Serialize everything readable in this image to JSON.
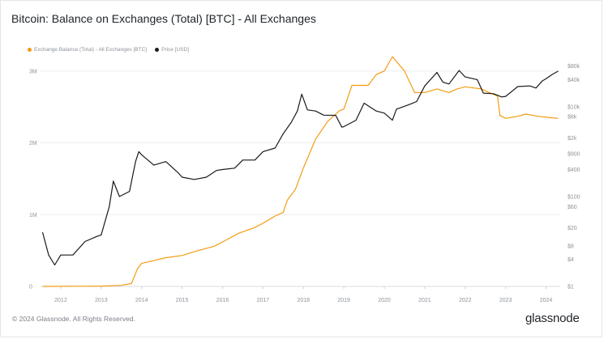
{
  "title": "Bitcoin: Balance on Exchanges (Total) [BTC] - All Exchanges",
  "footer": {
    "copyright": "© 2024 Glassnode. All Rights Reserved.",
    "logo": "glassnode"
  },
  "colors": {
    "balance": "#f39c12",
    "price": "#1a1a1a",
    "grid": "#eceef1",
    "axis_text": "#8d939a"
  },
  "chart_data": {
    "type": "line",
    "title": "Bitcoin: Balance on Exchanges (Total) [BTC] - All Exchanges",
    "legend_position": "top-left",
    "grid": true,
    "x_ticks": [
      "2012",
      "2013",
      "2014",
      "2015",
      "2016",
      "2017",
      "2018",
      "2019",
      "2020",
      "2021",
      "2022",
      "2023",
      "2024"
    ],
    "x_range": [
      2011.5,
      2024.35
    ],
    "y_left": {
      "label": "",
      "scale": "linear",
      "range": [
        0,
        3200000
      ],
      "ticks": [
        {
          "value": 0,
          "label": "0"
        },
        {
          "value": 1000000,
          "label": "1M"
        },
        {
          "value": 2000000,
          "label": "2M"
        },
        {
          "value": 3000000,
          "label": "3M"
        }
      ]
    },
    "y_right": {
      "label": "",
      "scale": "log",
      "range": [
        1,
        130000
      ],
      "ticks": [
        {
          "value": 1,
          "label": "$1"
        },
        {
          "value": 4,
          "label": "$4"
        },
        {
          "value": 8,
          "label": "$8"
        },
        {
          "value": 20,
          "label": "$20"
        },
        {
          "value": 60,
          "label": "$60"
        },
        {
          "value": 100,
          "label": "$100"
        },
        {
          "value": 400,
          "label": "$400"
        },
        {
          "value": 900,
          "label": "$900"
        },
        {
          "value": 2000,
          "label": "$2k"
        },
        {
          "value": 6000,
          "label": "$6k"
        },
        {
          "value": 10000,
          "label": "$10k"
        },
        {
          "value": 40000,
          "label": "$40k"
        },
        {
          "value": 80000,
          "label": "$80k"
        }
      ]
    },
    "series": [
      {
        "name": "Exchange Balance (Total) - All Exchanges [BTC]",
        "axis": "left",
        "points": [
          [
            2011.55,
            0
          ],
          [
            2012.0,
            1000
          ],
          [
            2012.5,
            2000
          ],
          [
            2013.0,
            5000
          ],
          [
            2013.5,
            15000
          ],
          [
            2013.75,
            40000
          ],
          [
            2013.9,
            250000
          ],
          [
            2014.0,
            320000
          ],
          [
            2014.3,
            360000
          ],
          [
            2014.6,
            400000
          ],
          [
            2015.0,
            430000
          ],
          [
            2015.4,
            500000
          ],
          [
            2015.8,
            560000
          ],
          [
            2016.0,
            620000
          ],
          [
            2016.4,
            740000
          ],
          [
            2016.8,
            820000
          ],
          [
            2017.0,
            880000
          ],
          [
            2017.3,
            980000
          ],
          [
            2017.5,
            1030000
          ],
          [
            2017.6,
            1200000
          ],
          [
            2017.8,
            1350000
          ],
          [
            2018.0,
            1650000
          ],
          [
            2018.3,
            2050000
          ],
          [
            2018.6,
            2300000
          ],
          [
            2018.9,
            2450000
          ],
          [
            2019.0,
            2470000
          ],
          [
            2019.2,
            2800000
          ],
          [
            2019.6,
            2800000
          ],
          [
            2019.8,
            2950000
          ],
          [
            2020.0,
            3000000
          ],
          [
            2020.2,
            3200000
          ],
          [
            2020.5,
            3000000
          ],
          [
            2020.75,
            2700000
          ],
          [
            2021.0,
            2700000
          ],
          [
            2021.3,
            2750000
          ],
          [
            2021.6,
            2700000
          ],
          [
            2021.8,
            2750000
          ],
          [
            2022.0,
            2780000
          ],
          [
            2022.4,
            2750000
          ],
          [
            2022.6,
            2700000
          ],
          [
            2022.8,
            2650000
          ],
          [
            2022.86,
            2380000
          ],
          [
            2023.0,
            2340000
          ],
          [
            2023.3,
            2370000
          ],
          [
            2023.5,
            2400000
          ],
          [
            2023.8,
            2370000
          ],
          [
            2024.1,
            2350000
          ],
          [
            2024.3,
            2340000
          ]
        ]
      },
      {
        "name": "Price [USD]",
        "axis": "right",
        "points": [
          [
            2011.55,
            16
          ],
          [
            2011.7,
            5
          ],
          [
            2011.85,
            3
          ],
          [
            2012.0,
            5
          ],
          [
            2012.3,
            5
          ],
          [
            2012.6,
            10
          ],
          [
            2012.9,
            13
          ],
          [
            2013.0,
            14
          ],
          [
            2013.2,
            60
          ],
          [
            2013.3,
            220
          ],
          [
            2013.45,
            100
          ],
          [
            2013.7,
            130
          ],
          [
            2013.85,
            600
          ],
          [
            2013.93,
            1000
          ],
          [
            2014.0,
            850
          ],
          [
            2014.3,
            500
          ],
          [
            2014.6,
            600
          ],
          [
            2014.9,
            340
          ],
          [
            2015.0,
            270
          ],
          [
            2015.3,
            240
          ],
          [
            2015.6,
            270
          ],
          [
            2015.85,
            380
          ],
          [
            2016.0,
            400
          ],
          [
            2016.3,
            430
          ],
          [
            2016.5,
            650
          ],
          [
            2016.8,
            650
          ],
          [
            2017.0,
            1000
          ],
          [
            2017.3,
            1200
          ],
          [
            2017.5,
            2500
          ],
          [
            2017.7,
            4500
          ],
          [
            2017.85,
            8000
          ],
          [
            2017.96,
            19000
          ],
          [
            2018.1,
            8500
          ],
          [
            2018.3,
            8000
          ],
          [
            2018.5,
            6500
          ],
          [
            2018.8,
            6400
          ],
          [
            2018.95,
            3500
          ],
          [
            2019.0,
            3600
          ],
          [
            2019.3,
            5000
          ],
          [
            2019.5,
            12000
          ],
          [
            2019.8,
            8000
          ],
          [
            2020.0,
            7200
          ],
          [
            2020.2,
            5000
          ],
          [
            2020.3,
            8800
          ],
          [
            2020.6,
            11000
          ],
          [
            2020.8,
            13000
          ],
          [
            2021.0,
            29000
          ],
          [
            2021.3,
            58000
          ],
          [
            2021.45,
            35000
          ],
          [
            2021.6,
            32000
          ],
          [
            2021.85,
            64000
          ],
          [
            2022.0,
            46000
          ],
          [
            2022.3,
            40000
          ],
          [
            2022.45,
            20000
          ],
          [
            2022.7,
            19500
          ],
          [
            2022.9,
            16500
          ],
          [
            2023.0,
            17000
          ],
          [
            2023.3,
            28000
          ],
          [
            2023.6,
            29000
          ],
          [
            2023.75,
            26000
          ],
          [
            2023.9,
            37000
          ],
          [
            2024.0,
            42000
          ],
          [
            2024.15,
            52000
          ],
          [
            2024.3,
            62000
          ]
        ]
      }
    ]
  }
}
